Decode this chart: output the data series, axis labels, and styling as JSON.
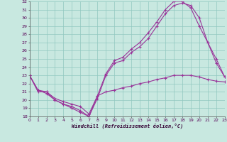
{
  "background_color": "#c8e8e0",
  "grid_color": "#90c8c0",
  "line_color": "#993399",
  "xlim": [
    0,
    23
  ],
  "ylim": [
    18,
    32
  ],
  "yticks": [
    18,
    19,
    20,
    21,
    22,
    23,
    24,
    25,
    26,
    27,
    28,
    29,
    30,
    31,
    32
  ],
  "xticks": [
    0,
    1,
    2,
    3,
    4,
    5,
    6,
    7,
    8,
    9,
    10,
    11,
    12,
    13,
    14,
    15,
    16,
    17,
    18,
    19,
    20,
    21,
    22,
    23
  ],
  "xlabel": "Windchill (Refroidissement éolien,°C)",
  "series": [
    {
      "x": [
        0,
        1,
        2,
        3,
        4,
        5,
        6,
        7,
        8,
        9,
        10,
        11,
        12,
        13,
        14,
        15,
        16,
        17,
        18,
        19,
        20,
        21,
        22,
        23
      ],
      "y": [
        23.0,
        21.2,
        21.0,
        20.2,
        19.8,
        19.5,
        19.2,
        18.3,
        20.5,
        23.2,
        24.8,
        25.2,
        26.2,
        27.0,
        28.2,
        29.5,
        31.0,
        32.0,
        32.0,
        31.2,
        29.0,
        27.0,
        24.5,
        22.8
      ]
    },
    {
      "x": [
        0,
        1,
        2,
        3,
        4,
        5,
        6,
        7,
        8,
        9,
        10,
        11,
        12,
        13,
        14,
        15,
        16,
        17,
        18,
        19,
        20,
        21,
        22,
        23
      ],
      "y": [
        23.0,
        21.0,
        21.0,
        20.0,
        19.5,
        19.2,
        18.7,
        18.0,
        20.2,
        23.0,
        24.5,
        24.8,
        25.8,
        26.5,
        27.5,
        29.0,
        30.5,
        31.5,
        31.8,
        31.5,
        30.0,
        27.0,
        25.0,
        22.8
      ]
    },
    {
      "x": [
        0,
        1,
        2,
        3,
        4,
        5,
        6,
        7,
        8,
        9,
        10,
        11,
        12,
        13,
        14,
        15,
        16,
        17,
        18,
        19,
        20,
        21,
        22,
        23
      ],
      "y": [
        23.0,
        21.2,
        20.8,
        20.0,
        19.5,
        19.0,
        18.5,
        18.0,
        20.5,
        21.0,
        21.2,
        21.5,
        21.7,
        22.0,
        22.2,
        22.5,
        22.7,
        23.0,
        23.0,
        23.0,
        22.8,
        22.5,
        22.3,
        22.2
      ]
    }
  ]
}
